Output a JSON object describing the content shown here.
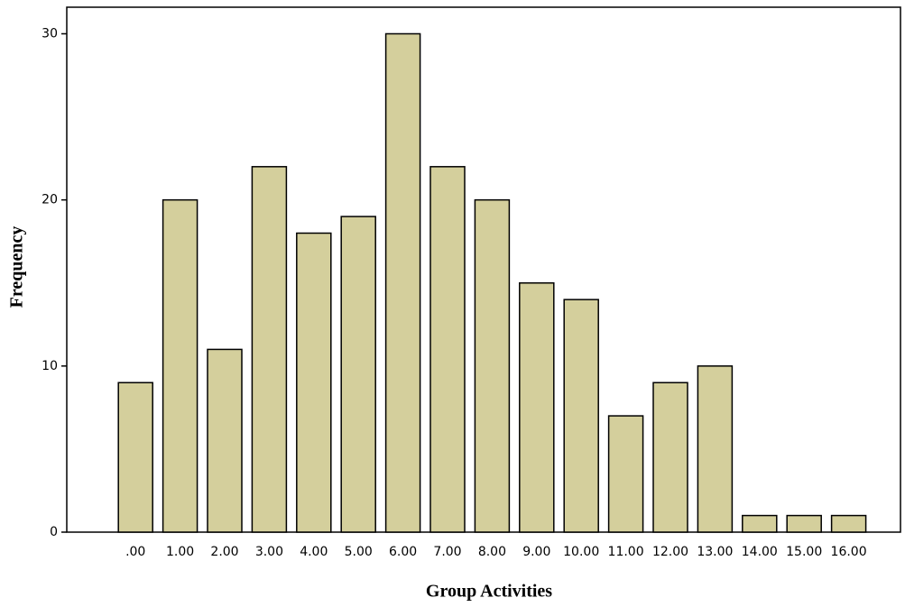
{
  "chart_data": {
    "type": "bar",
    "x_label": "Group Activities",
    "y_label": "Frequency",
    "categories": [
      ".00",
      "1.00",
      "2.00",
      "3.00",
      "4.00",
      "5.00",
      "6.00",
      "7.00",
      "8.00",
      "9.00",
      "10.00",
      "11.00",
      "12.00",
      "13.00",
      "14.00",
      "15.00",
      "16.00"
    ],
    "values": [
      9,
      20,
      11,
      22,
      18,
      19,
      30,
      22,
      20,
      15,
      14,
      7,
      9,
      10,
      1,
      1,
      1
    ],
    "color": "#d4cf9c",
    "ylim": [
      0,
      31.6
    ],
    "yticks": [
      0,
      10,
      20,
      30
    ],
    "grid": false
  }
}
